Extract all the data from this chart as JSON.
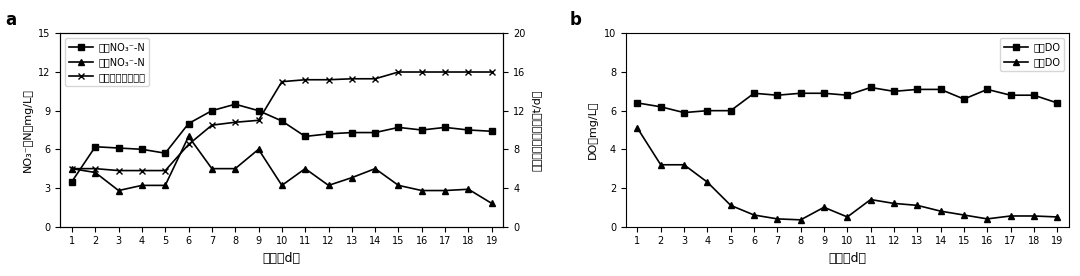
{
  "days": [
    1,
    2,
    3,
    4,
    5,
    6,
    7,
    8,
    9,
    10,
    11,
    12,
    13,
    14,
    15,
    16,
    17,
    18,
    19
  ],
  "in_NO3": [
    3.5,
    6.2,
    6.1,
    6.0,
    5.7,
    8.0,
    9.0,
    9.5,
    9.0,
    8.2,
    7.0,
    7.2,
    7.3,
    7.3,
    7.7,
    7.5,
    7.7,
    7.5,
    7.4
  ],
  "out_NO3": [
    4.5,
    4.2,
    2.8,
    3.2,
    3.2,
    7.0,
    4.5,
    4.5,
    6.0,
    3.2,
    4.5,
    3.2,
    3.8,
    4.5,
    3.2,
    2.8,
    2.8,
    2.9,
    1.8
  ],
  "biomass": [
    6.0,
    6.0,
    5.8,
    5.8,
    5.8,
    8.5,
    10.5,
    10.8,
    11.0,
    15.0,
    15.2,
    15.2,
    15.3,
    15.3,
    16.0,
    16.0,
    16.0,
    16.0,
    16.0
  ],
  "in_DO": [
    6.4,
    6.2,
    5.9,
    6.0,
    6.0,
    6.9,
    6.8,
    6.9,
    6.9,
    6.8,
    7.2,
    7.0,
    7.1,
    7.1,
    6.6,
    7.1,
    6.8,
    6.8,
    6.4
  ],
  "out_DO": [
    5.1,
    3.2,
    3.2,
    2.3,
    1.1,
    0.6,
    0.4,
    0.35,
    1.0,
    0.5,
    1.4,
    1.2,
    1.1,
    0.8,
    0.6,
    0.4,
    0.55,
    0.55,
    0.5
  ],
  "label_a": "a",
  "label_b": "b",
  "legend_in_NO3": "进水NO₃⁻-N",
  "legend_out_NO3": "出水NO₃⁻-N",
  "legend_biomass": "生物质碳源投加量",
  "legend_in_DO": "进水DO",
  "legend_out_DO": "出水DO",
  "xlabel": "时间（d）",
  "ylabel_a": "NO₃⁻－N（mg/L）",
  "ylabel_a2": "生物质碳源投加量（t/d）",
  "ylabel_b": "DO（mg/L）",
  "ylim_a": [
    0,
    15
  ],
  "ylim_a2": [
    0,
    20
  ],
  "ylim_b": [
    0,
    10
  ],
  "yticks_a": [
    0,
    3,
    6,
    9,
    12,
    15
  ],
  "yticks_a2": [
    0,
    4,
    8,
    12,
    16,
    20
  ],
  "yticks_b": [
    0,
    2,
    4,
    6,
    8,
    10
  ],
  "color_square": "#000000",
  "color_triangle": "#000000",
  "color_x": "#000000",
  "bg_color": "#ffffff",
  "linewidth": 1.2,
  "markersize": 5
}
